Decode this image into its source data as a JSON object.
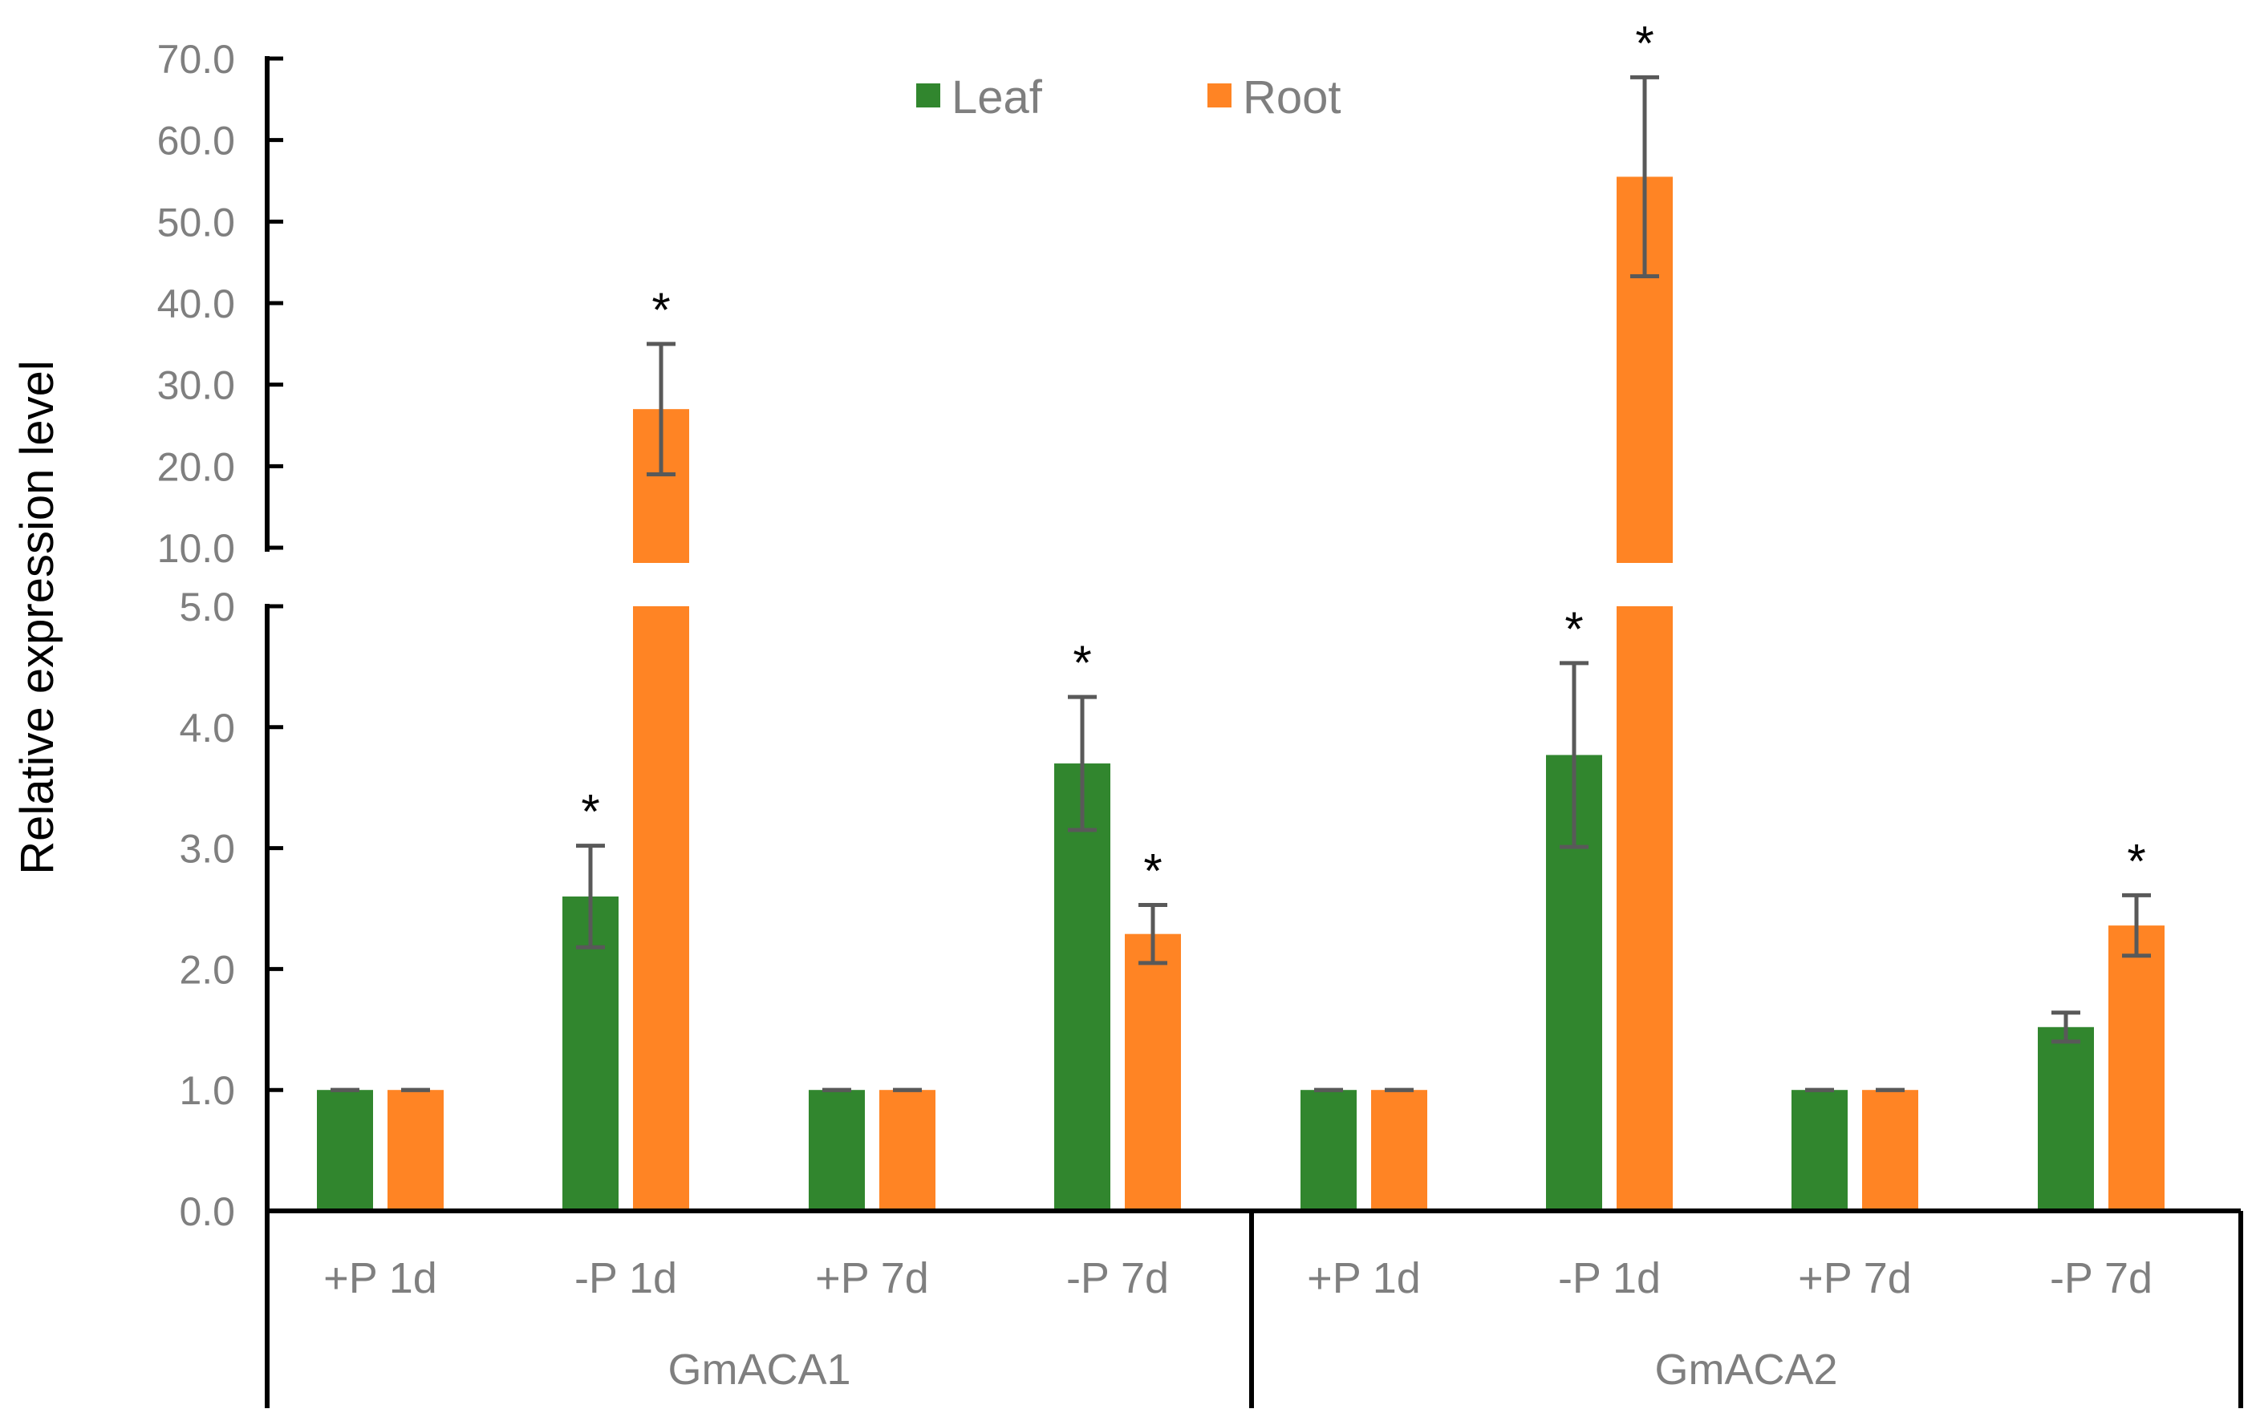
{
  "colors": {
    "leaf": "#31862E",
    "root": "#FF8424",
    "axis": "#000000",
    "tick_text": "#7F7F7F",
    "error_bar": "#595959"
  },
  "legend": [
    {
      "key": "leaf",
      "label": "Leaf"
    },
    {
      "key": "root",
      "label": "Root"
    }
  ],
  "chart_data": {
    "type": "bar",
    "title": "",
    "ylabel": "Relative expression level",
    "xlabel": "",
    "axis_break": {
      "lower_range": [
        0,
        5
      ],
      "upper_range": [
        10,
        70
      ]
    },
    "y_ticks_lower": [
      "0.0",
      "1.0",
      "2.0",
      "3.0",
      "4.0",
      "5.0"
    ],
    "y_ticks_upper": [
      "10.0",
      "20.0",
      "30.0",
      "40.0",
      "50.0",
      "60.0",
      "70.0"
    ],
    "groups": [
      {
        "name": "GmACA1",
        "categories": [
          "+P 1d",
          "-P 1d",
          "+P 7d",
          "-P 7d"
        ]
      },
      {
        "name": "GmACA2",
        "categories": [
          "+P 1d",
          "-P 1d",
          "+P 7d",
          "-P 7d"
        ]
      }
    ],
    "series": [
      {
        "name": "Leaf",
        "values": [
          1.0,
          2.6,
          1.0,
          3.7,
          1.0,
          3.77,
          1.0,
          1.52
        ],
        "errors": [
          0.0,
          0.42,
          0.0,
          0.55,
          0.0,
          0.76,
          0.0,
          0.12
        ],
        "significant": [
          false,
          true,
          false,
          true,
          false,
          true,
          false,
          false
        ]
      },
      {
        "name": "Root",
        "values": [
          1.0,
          27.0,
          1.0,
          2.29,
          1.0,
          55.5,
          1.0,
          2.36
        ],
        "errors": [
          0.0,
          8.0,
          0.0,
          0.24,
          0.0,
          12.2,
          0.0,
          0.25
        ],
        "significant": [
          false,
          true,
          false,
          true,
          false,
          true,
          false,
          true
        ]
      }
    ],
    "significance_marker": "*",
    "legend_position": "top-center"
  }
}
